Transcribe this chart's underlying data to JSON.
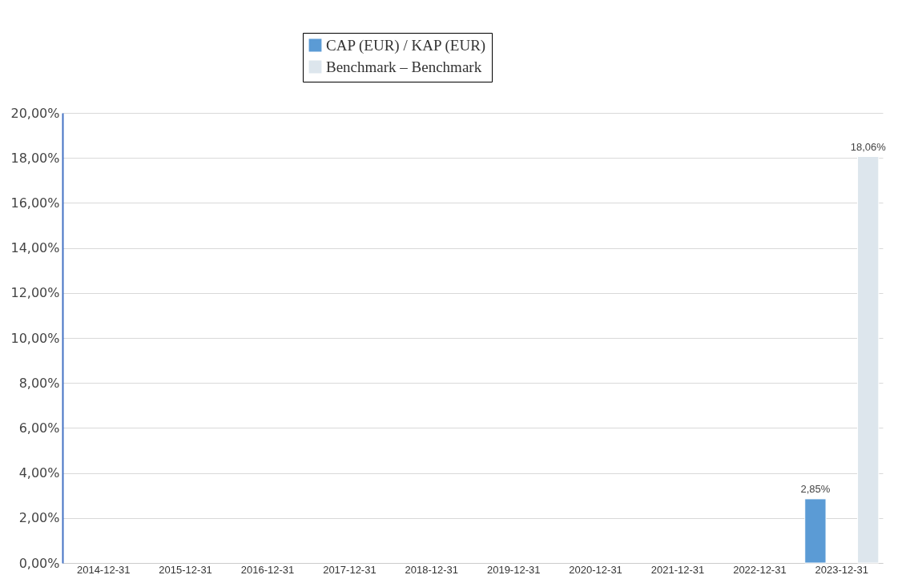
{
  "chart_data": {
    "type": "bar",
    "categories": [
      "2014-12-31",
      "2015-12-31",
      "2016-12-31",
      "2017-12-31",
      "2018-12-31",
      "2019-12-31",
      "2020-12-31",
      "2021-12-31",
      "2022-12-31",
      "2023-12-31"
    ],
    "series": [
      {
        "name": "CAP (EUR) / KAP (EUR)",
        "color": "#5b9bd5",
        "values": [
          null,
          null,
          null,
          null,
          null,
          null,
          null,
          null,
          null,
          2.85
        ],
        "value_labels": [
          null,
          null,
          null,
          null,
          null,
          null,
          null,
          null,
          null,
          "2,85%"
        ]
      },
      {
        "name": "Benchmark – Benchmark",
        "color": "#dde6ed",
        "values": [
          null,
          null,
          null,
          null,
          null,
          null,
          null,
          null,
          null,
          18.06
        ],
        "value_labels": [
          null,
          null,
          null,
          null,
          null,
          null,
          null,
          null,
          null,
          "18,06%"
        ]
      }
    ],
    "ylim": [
      0,
      20
    ],
    "yticks": [
      {
        "value": 0,
        "label": "0,00%"
      },
      {
        "value": 2,
        "label": "2,00%"
      },
      {
        "value": 4,
        "label": "4,00%"
      },
      {
        "value": 6,
        "label": "6,00%"
      },
      {
        "value": 8,
        "label": "8,00%"
      },
      {
        "value": 10,
        "label": "10,00%"
      },
      {
        "value": 12,
        "label": "12,00%"
      },
      {
        "value": 14,
        "label": "14,00%"
      },
      {
        "value": 16,
        "label": "16,00%"
      },
      {
        "value": 18,
        "label": "18,00%"
      },
      {
        "value": 20,
        "label": "20,00%"
      }
    ],
    "grid": "y",
    "legend": "top"
  }
}
